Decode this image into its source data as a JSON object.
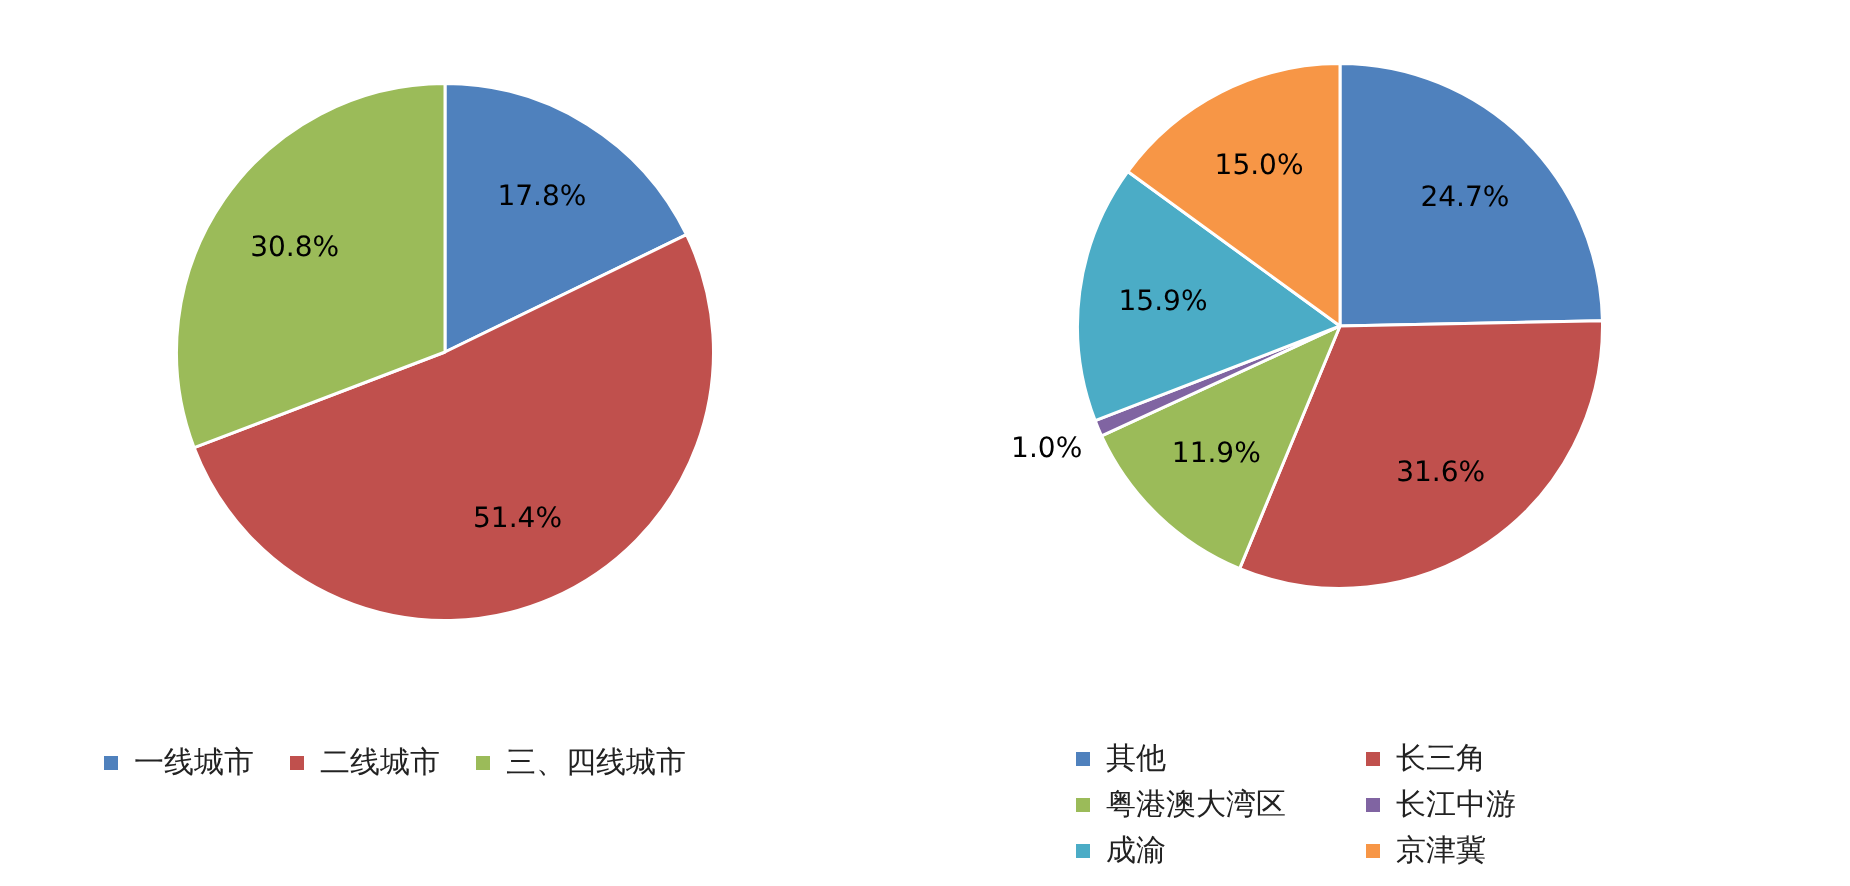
{
  "chart_data": [
    {
      "type": "pie",
      "categories": [
        "一线城市",
        "二线城市",
        "三、四线城市"
      ],
      "values": [
        17.8,
        51.4,
        30.8
      ],
      "colors": [
        "#4f81bd",
        "#c0504d",
        "#9bbb59"
      ],
      "value_labels": [
        "17.8%",
        "51.4%",
        "30.8%"
      ],
      "legend": "bottom"
    },
    {
      "type": "pie",
      "categories": [
        "其他",
        "长三角",
        "粤港澳大湾区",
        "长江中游",
        "成渝",
        "京津冀"
      ],
      "values": [
        24.7,
        31.6,
        11.9,
        1.0,
        15.9,
        15.0
      ],
      "colors": [
        "#4f81bd",
        "#c0504d",
        "#9bbb59",
        "#8064a2",
        "#4bacc6",
        "#f79646"
      ],
      "value_labels": [
        "24.7%",
        "31.6%",
        "11.9%",
        "1.0%",
        "15.9%",
        "15.0%"
      ],
      "legend": "bottom"
    }
  ]
}
